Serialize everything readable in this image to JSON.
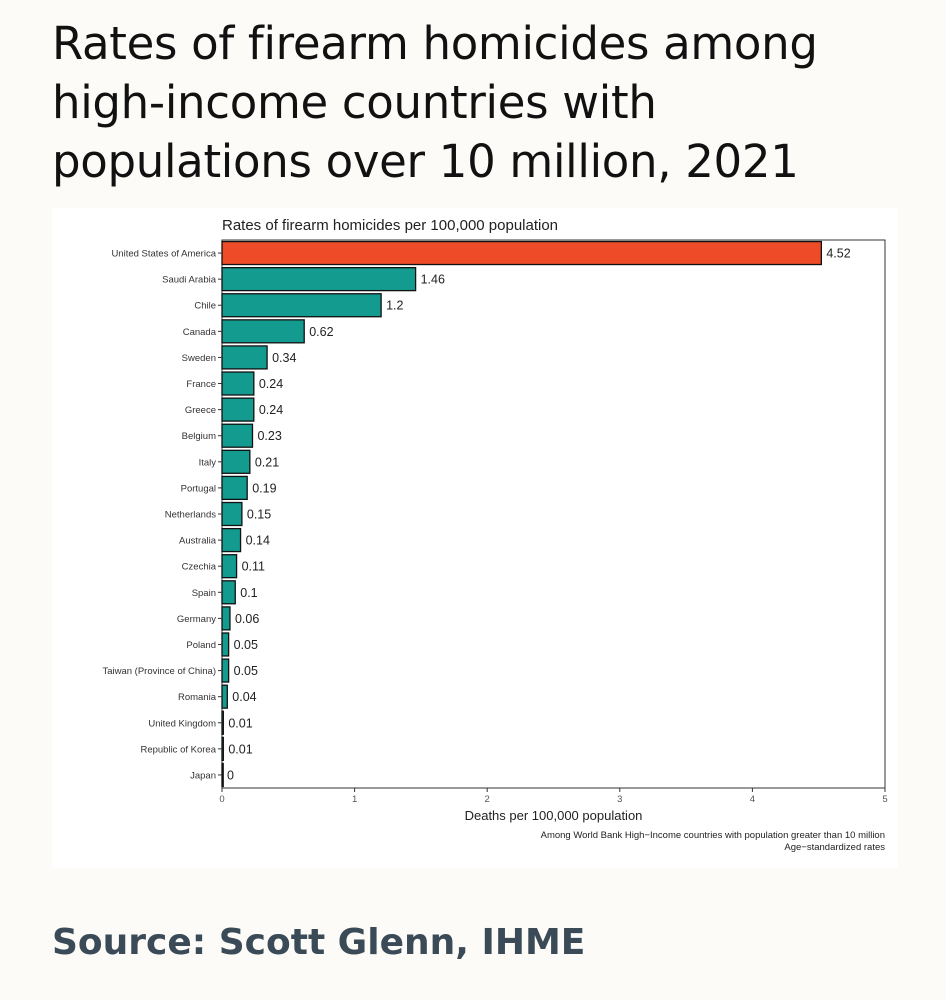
{
  "headline": "Rates of firearm homicides among high-income countries with populations over 10 million, 2021",
  "source": "Source: Scott Glenn, IHME",
  "chart_data": {
    "type": "bar",
    "orientation": "horizontal",
    "title": "Rates of firearm homicides per 100,000 population",
    "xlabel": "Deaths per 100,000 population",
    "ylabel": "",
    "notes": [
      "Among World Bank High−Income countries with population greater than 10 million",
      "Age−standardized rates"
    ],
    "xlim": [
      0,
      5
    ],
    "xticks": [
      "0",
      "1",
      "2",
      "3",
      "4",
      "5"
    ],
    "categories": [
      "United States of America",
      "Saudi Arabia",
      "Chile",
      "Canada",
      "Sweden",
      "France",
      "Greece",
      "Belgium",
      "Italy",
      "Portugal",
      "Netherlands",
      "Australia",
      "Czechia",
      "Spain",
      "Germany",
      "Poland",
      "Taiwan (Province of China)",
      "Romania",
      "United Kingdom",
      "Republic of Korea",
      "Japan"
    ],
    "values": [
      4.52,
      1.46,
      1.2,
      0.62,
      0.34,
      0.24,
      0.24,
      0.23,
      0.21,
      0.19,
      0.15,
      0.14,
      0.11,
      0.1,
      0.06,
      0.05,
      0.05,
      0.04,
      0.01,
      0.01,
      0
    ],
    "value_labels": [
      "4.52",
      "1.46",
      "1.2",
      "0.62",
      "0.34",
      "0.24",
      "0.24",
      "0.23",
      "0.21",
      "0.19",
      "0.15",
      "0.14",
      "0.11",
      "0.1",
      "0.06",
      "0.05",
      "0.05",
      "0.04",
      "0.01",
      "0.01",
      "0"
    ],
    "highlight_color": "#ee4b28",
    "bar_color": "#129b8e",
    "grid": false,
    "legend": "none"
  }
}
